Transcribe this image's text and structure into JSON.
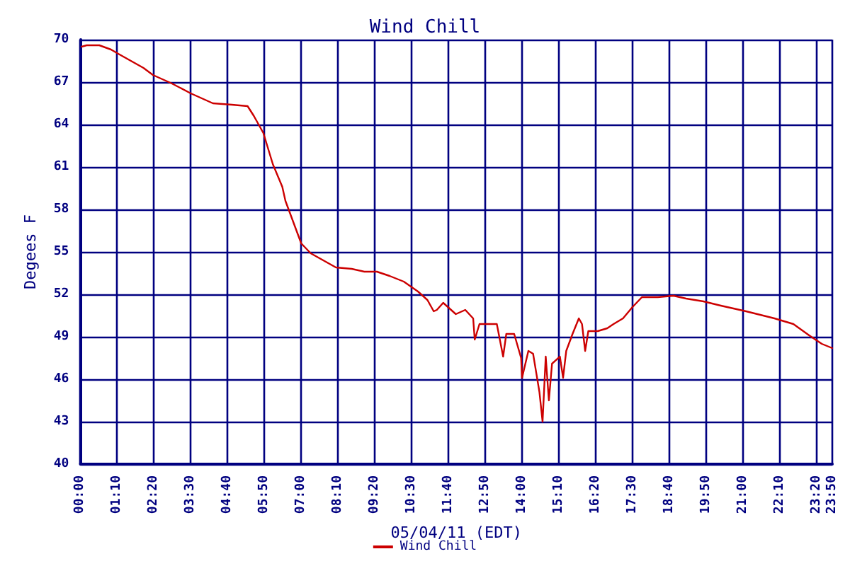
{
  "chart_data": {
    "type": "line",
    "title": "Wind Chill",
    "xlabel": "05/04/11 (EDT)",
    "ylabel": "Degees F",
    "xlim": [
      0,
      23.8333
    ],
    "xticks": [
      {
        "value": 0,
        "label": "00:00"
      },
      {
        "value": 1.1667,
        "label": "01:10"
      },
      {
        "value": 2.3333,
        "label": "02:20"
      },
      {
        "value": 3.5,
        "label": "03:30"
      },
      {
        "value": 4.6667,
        "label": "04:40"
      },
      {
        "value": 5.8333,
        "label": "05:50"
      },
      {
        "value": 7,
        "label": "07:00"
      },
      {
        "value": 8.1667,
        "label": "08:10"
      },
      {
        "value": 9.3333,
        "label": "09:20"
      },
      {
        "value": 10.5,
        "label": "10:30"
      },
      {
        "value": 11.6667,
        "label": "11:40"
      },
      {
        "value": 12.8333,
        "label": "12:50"
      },
      {
        "value": 14,
        "label": "14:00"
      },
      {
        "value": 15.1667,
        "label": "15:10"
      },
      {
        "value": 16.3333,
        "label": "16:20"
      },
      {
        "value": 17.5,
        "label": "17:30"
      },
      {
        "value": 18.6667,
        "label": "18:40"
      },
      {
        "value": 19.8333,
        "label": "19:50"
      },
      {
        "value": 21,
        "label": "21:00"
      },
      {
        "value": 22.1667,
        "label": "22:10"
      },
      {
        "value": 23.3333,
        "label": "23:20"
      },
      {
        "value": 23.8333,
        "label": "23:50"
      }
    ],
    "ylim": [
      40,
      70
    ],
    "yticks": [
      40,
      43,
      46,
      49,
      52,
      55,
      58,
      61,
      64,
      67,
      70
    ],
    "grid": true,
    "legend": "bottom",
    "marker": "none",
    "line_style": "solid",
    "series": [
      {
        "name": "Wind Chill",
        "color": "#cc0000",
        "x": [
          0.04,
          0.2,
          0.6,
          0.97,
          1.2,
          1.6,
          2.0,
          2.3,
          2.9,
          3.5,
          4.2,
          4.8,
          5.3,
          5.5,
          5.8,
          6.1,
          6.4,
          6.5,
          6.8,
          7.0,
          7.3,
          7.7,
          8.1,
          8.6,
          9.0,
          9.4,
          9.8,
          10.25,
          10.7,
          11.0,
          11.2,
          11.3,
          11.5,
          11.7,
          11.9,
          12.2,
          12.45,
          12.5,
          12.65,
          12.9,
          13.2,
          13.4,
          13.5,
          13.75,
          13.97,
          14.0,
          14.2,
          14.35,
          14.55,
          14.65,
          14.75,
          14.85,
          14.95,
          15.2,
          15.3,
          15.4,
          15.6,
          15.8,
          15.9,
          16.0,
          16.1,
          16.4,
          16.7,
          16.9,
          17.2,
          17.5,
          17.8,
          18.3,
          18.8,
          19.2,
          19.75,
          20.3,
          21.1,
          22.0,
          22.6,
          23.1,
          23.5,
          23.83
        ],
        "values": [
          69.5,
          69.6,
          69.6,
          69.3,
          69.0,
          68.5,
          68.0,
          67.5,
          66.9,
          66.2,
          65.5,
          65.4,
          65.3,
          64.6,
          63.4,
          61.2,
          59.6,
          58.6,
          56.8,
          55.6,
          54.9,
          54.4,
          53.9,
          53.8,
          53.6,
          53.6,
          53.3,
          52.9,
          52.2,
          51.6,
          50.8,
          50.9,
          51.4,
          51.0,
          50.6,
          50.9,
          50.3,
          48.8,
          49.9,
          49.9,
          49.9,
          47.6,
          49.2,
          49.2,
          47.5,
          46.1,
          48.0,
          47.8,
          45.1,
          43.0,
          47.6,
          44.5,
          47.1,
          47.6,
          46.1,
          48.0,
          49.2,
          50.3,
          49.9,
          48.0,
          49.4,
          49.4,
          49.6,
          49.9,
          50.3,
          51.1,
          51.8,
          51.8,
          51.9,
          51.7,
          51.5,
          51.2,
          50.8,
          50.3,
          49.9,
          49.1,
          48.5,
          48.2
        ]
      }
    ]
  }
}
